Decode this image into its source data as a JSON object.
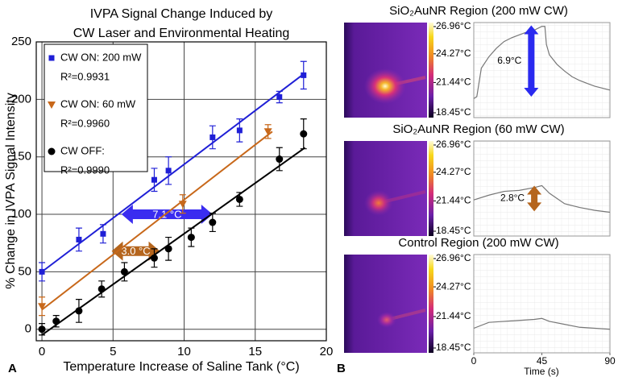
{
  "panel_labels": [
    "A",
    "B"
  ],
  "chart_data": [
    {
      "type": "scatter",
      "title": [
        "IVPA Signal Change Induced by",
        "CW Laser and Environmental Heating"
      ],
      "x_label": "Temperature Increase of Saline Tank (°C)",
      "y_label": "% Change in IVPA Signal Intensity",
      "xlim": [
        -0.4,
        20
      ],
      "ylim": [
        -10,
        250
      ],
      "xticks": [
        0,
        5,
        10,
        15,
        20
      ],
      "yticks": [
        0,
        50,
        100,
        150,
        200,
        250
      ],
      "grid": true,
      "series": [
        {
          "name": "CW ON: 200 mW",
          "r2_label": "R²=0.9931",
          "color": "#1f1fd6",
          "marker": "square",
          "x": [
            0,
            2.6,
            4.3,
            7.9,
            8.9,
            12,
            13.9,
            16.7,
            18.4
          ],
          "values": [
            50,
            78,
            83,
            130,
            138,
            167,
            173,
            202,
            221
          ],
          "errors": [
            8,
            10,
            8,
            10,
            12,
            10,
            10,
            5,
            12
          ],
          "fit": {
            "x": [
              0,
              18.4
            ],
            "values": [
              50,
              222
            ]
          }
        },
        {
          "name": "CW ON: 60 mW",
          "r2_label": "R²=0.9960",
          "color": "#c8681a",
          "marker": "triangle",
          "x": [
            0,
            9.9,
            15.9
          ],
          "values": [
            20,
            109,
            172
          ],
          "errors": [
            8,
            8,
            6
          ],
          "fit": {
            "x": [
              0,
              16.2
            ],
            "values": [
              17,
              172
            ]
          }
        },
        {
          "name": "CW OFF:",
          "r2_label": "R²=0.9990",
          "color": "#000000",
          "marker": "circle",
          "x": [
            0,
            1,
            2.6,
            4.2,
            5.8,
            7.9,
            8.9,
            10.5,
            12,
            13.9,
            16.7,
            18.4
          ],
          "values": [
            0,
            7,
            16,
            35,
            50,
            62,
            70,
            80,
            93,
            113,
            148,
            170
          ],
          "errors": [
            5,
            5,
            10,
            7,
            8,
            8,
            10,
            8,
            8,
            6,
            10,
            13
          ],
          "fit": {
            "x": [
              0,
              18.5
            ],
            "values": [
              -5,
              158
            ]
          }
        }
      ],
      "annotations": [
        {
          "text": "7.1 °C",
          "x": [
            5.6,
            12
          ],
          "y": 100,
          "color": "#3a2cf0"
        },
        {
          "text": "3.0 °C",
          "x": [
            4.9,
            8.3
          ],
          "y": 68,
          "color": "#b5651d"
        }
      ]
    },
    {
      "type": "line",
      "title": "SiO₂AuNR Region (200 mW CW)",
      "xlim": [
        0,
        90
      ],
      "ylim": [
        0,
        10
      ],
      "colorbar": [
        {
          "value": 26.96,
          "label": "26.96°C"
        },
        {
          "value": 24.27,
          "label": "24.27°C"
        },
        {
          "value": 21.44,
          "label": "21.44°C"
        },
        {
          "value": 18.45,
          "label": "18.45°C"
        }
      ],
      "series": [
        {
          "color": "#777777",
          "x": [
            0,
            2,
            5,
            10,
            15,
            20,
            25,
            30,
            35,
            40,
            45,
            47,
            48,
            50,
            55,
            60,
            65,
            70,
            75,
            80,
            85,
            90
          ],
          "values": [
            2.0,
            2.2,
            5.2,
            6.4,
            7.3,
            8.0,
            8.4,
            8.7,
            9.0,
            9.2,
            9.6,
            9.6,
            7.7,
            6.6,
            5.6,
            4.9,
            4.3,
            3.9,
            3.6,
            3.3,
            3.1,
            2.9
          ]
        }
      ],
      "annotation": {
        "text": "6.9°C",
        "x": 38,
        "y": [
          9.7,
          2.2
        ],
        "color": "#2a2af0"
      }
    },
    {
      "type": "line",
      "title": "SiO₂AuNR Region (60 mW CW)",
      "xlim": [
        0,
        90
      ],
      "ylim": [
        0,
        10
      ],
      "colorbar": [
        {
          "value": 26.96,
          "label": "26.96°C"
        },
        {
          "value": 24.27,
          "label": "24.27°C"
        },
        {
          "value": 21.44,
          "label": "21.44°C"
        },
        {
          "value": 18.45,
          "label": "18.45°C"
        }
      ],
      "series": [
        {
          "color": "#777777",
          "x": [
            0,
            10,
            20,
            30,
            40,
            45,
            50,
            60,
            70,
            80,
            90
          ],
          "values": [
            3.8,
            4.3,
            4.7,
            4.8,
            5.1,
            5.3,
            4.5,
            3.4,
            3.0,
            2.7,
            2.5
          ]
        }
      ],
      "annotation": {
        "text": "2.8°C",
        "x": 40,
        "y": [
          5.3,
          2.6
        ],
        "color": "#b5651d"
      }
    },
    {
      "type": "line",
      "title": "Control Region (200 mW CW)",
      "x_label": "Time (s)",
      "xlim": [
        0,
        90
      ],
      "ylim": [
        0,
        10
      ],
      "xticks": [
        0,
        45,
        90
      ],
      "colorbar": [
        {
          "value": 26.96,
          "label": "26.96°C"
        },
        {
          "value": 24.27,
          "label": "24.27°C"
        },
        {
          "value": 21.44,
          "label": "21.44°C"
        },
        {
          "value": 18.45,
          "label": "18.45°C"
        }
      ],
      "series": [
        {
          "color": "#777777",
          "x": [
            0,
            10,
            20,
            30,
            40,
            45,
            50,
            60,
            70,
            80,
            90
          ],
          "values": [
            2.5,
            3.1,
            3.2,
            3.3,
            3.4,
            3.5,
            3.2,
            2.9,
            2.6,
            2.5,
            2.4
          ]
        }
      ]
    }
  ]
}
